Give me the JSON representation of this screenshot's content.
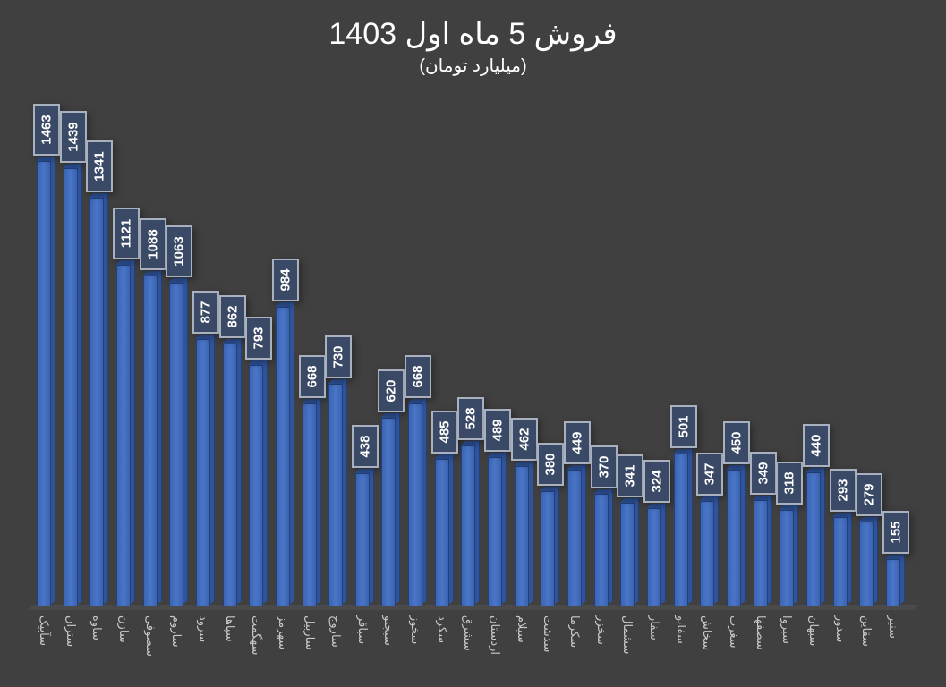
{
  "header": {
    "title": "فروش 5 ماه اول 1403",
    "subtitle": "(میلیارد تومان)"
  },
  "colors": {
    "background": "#404040",
    "bar": "#4472C4",
    "label_bg": "#3a4a66",
    "label_border": "#a9b1bf",
    "text": "#ffffff"
  },
  "chart_data": {
    "type": "bar",
    "title": "فروش 5 ماه اول 1403",
    "subtitle": "(میلیارد تومان)",
    "xlabel": "",
    "ylabel": "میلیارد تومان",
    "ylim": [
      0,
      1500
    ],
    "grid": false,
    "legend": "none",
    "style": "3d-column with rotated data labels",
    "categories": [
      "سآبیک",
      "ستران",
      "ساوه",
      "سازن",
      "سصوفی",
      "ساروم",
      "سرود",
      "سپاها",
      "سهگمت",
      "سهرمز",
      "ساربیل",
      "ساروج",
      "سباقر",
      "سبجنو",
      "سخوز",
      "سکرد",
      "سشرق",
      "اردستان",
      "سیلام",
      "سدشت",
      "سکرما",
      "سخزر",
      "سشمال",
      "سفار",
      "سفانو",
      "سخاش",
      "سغرب",
      "سصفها",
      "سبزوا",
      "سبهان",
      "سدور",
      "سقاین",
      "سنیر"
    ],
    "values": [
      1463,
      1439,
      1341,
      1121,
      1088,
      1063,
      877,
      862,
      793,
      984,
      668,
      730,
      438,
      620,
      668,
      485,
      528,
      489,
      462,
      380,
      449,
      370,
      341,
      324,
      501,
      347,
      450,
      349,
      318,
      440,
      293,
      279,
      155
    ]
  }
}
